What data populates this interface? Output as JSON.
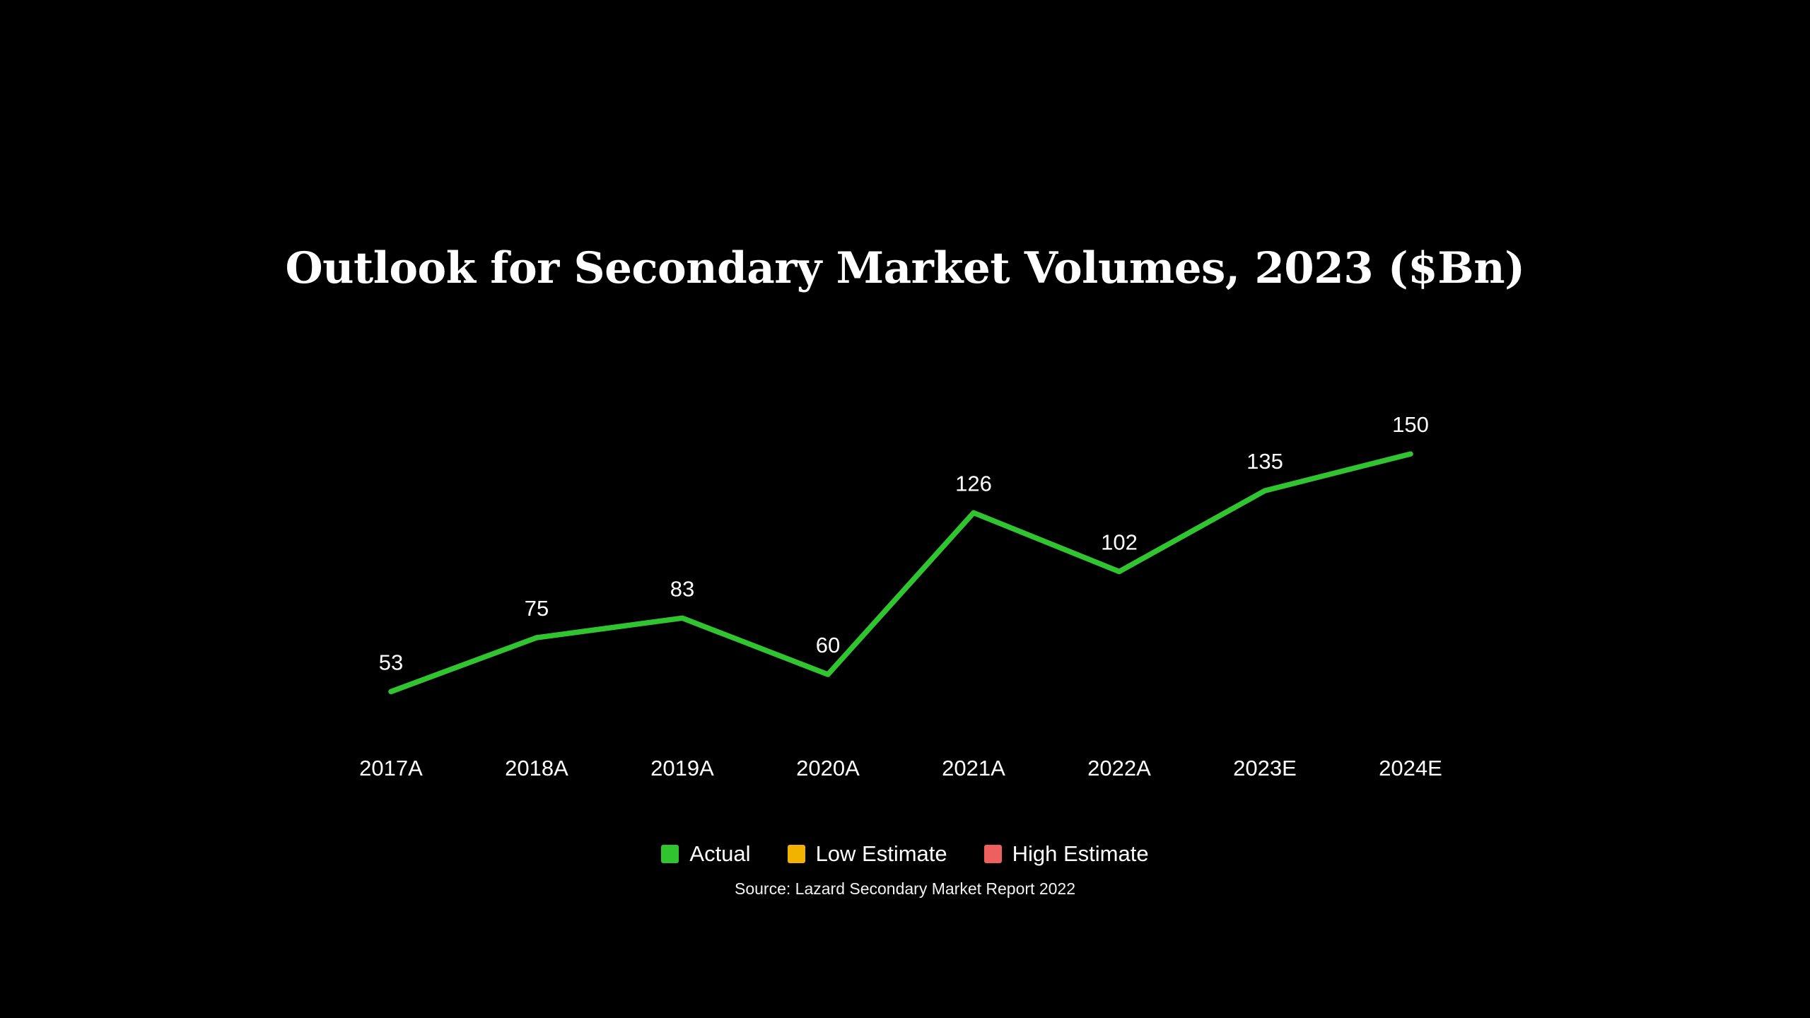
{
  "page": {
    "background": "#000000",
    "text_color": "#ffffff"
  },
  "chart_data": {
    "type": "line",
    "title": "Outlook for Secondary Market Volumes, 2023 ($Bn)",
    "categories": [
      "2017A",
      "2018A",
      "2019A",
      "2020A",
      "2021A",
      "2022A",
      "2023E",
      "2024E"
    ],
    "series": [
      {
        "name": "Actual",
        "color": "#30c530",
        "values": [
          53,
          75,
          83,
          60,
          126,
          102,
          135,
          150
        ],
        "data_labels": true
      }
    ],
    "legend": [
      {
        "label": "Actual",
        "color": "#30c530"
      },
      {
        "label": "Low Estimate",
        "color": "#f2b200"
      },
      {
        "label": "High Estimate",
        "color": "#ee5f5f"
      }
    ],
    "legend_position": "bottom-center",
    "grid": false,
    "xlabel": "",
    "ylabel": "",
    "ylim": [
      0,
      160
    ],
    "source": "Source: Lazard Secondary Market Report 2022"
  }
}
